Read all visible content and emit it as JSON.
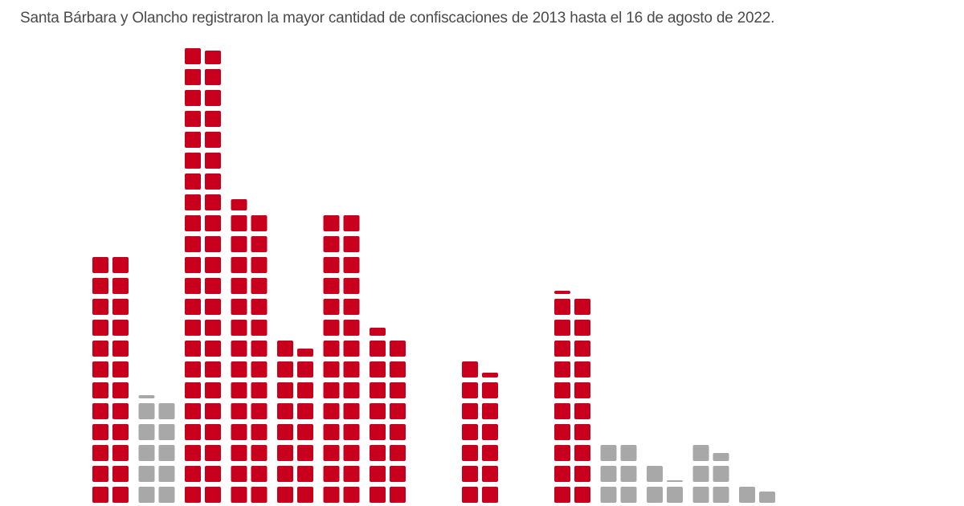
{
  "chart_data": {
    "type": "bar",
    "subtitle": "Santa Bárbara y Olancho registraron la mayor cantidad de confiscaciones de 2013 hasta el 16 de agosto de 2022.",
    "style": "waffle-columns",
    "values": [
      24,
      10.2,
      43.85,
      28.7,
      15.5,
      28,
      16.5,
      0,
      13.3,
      0,
      20.2,
      6,
      3.05,
      5.5,
      1.7
    ],
    "highlighted": [
      true,
      false,
      true,
      true,
      true,
      true,
      true,
      true,
      true,
      true,
      true,
      false,
      false,
      false,
      false
    ],
    "colors": {
      "highlight": "#c8001e",
      "other": "#a8a8a8"
    },
    "grid": false,
    "legend": "none"
  }
}
